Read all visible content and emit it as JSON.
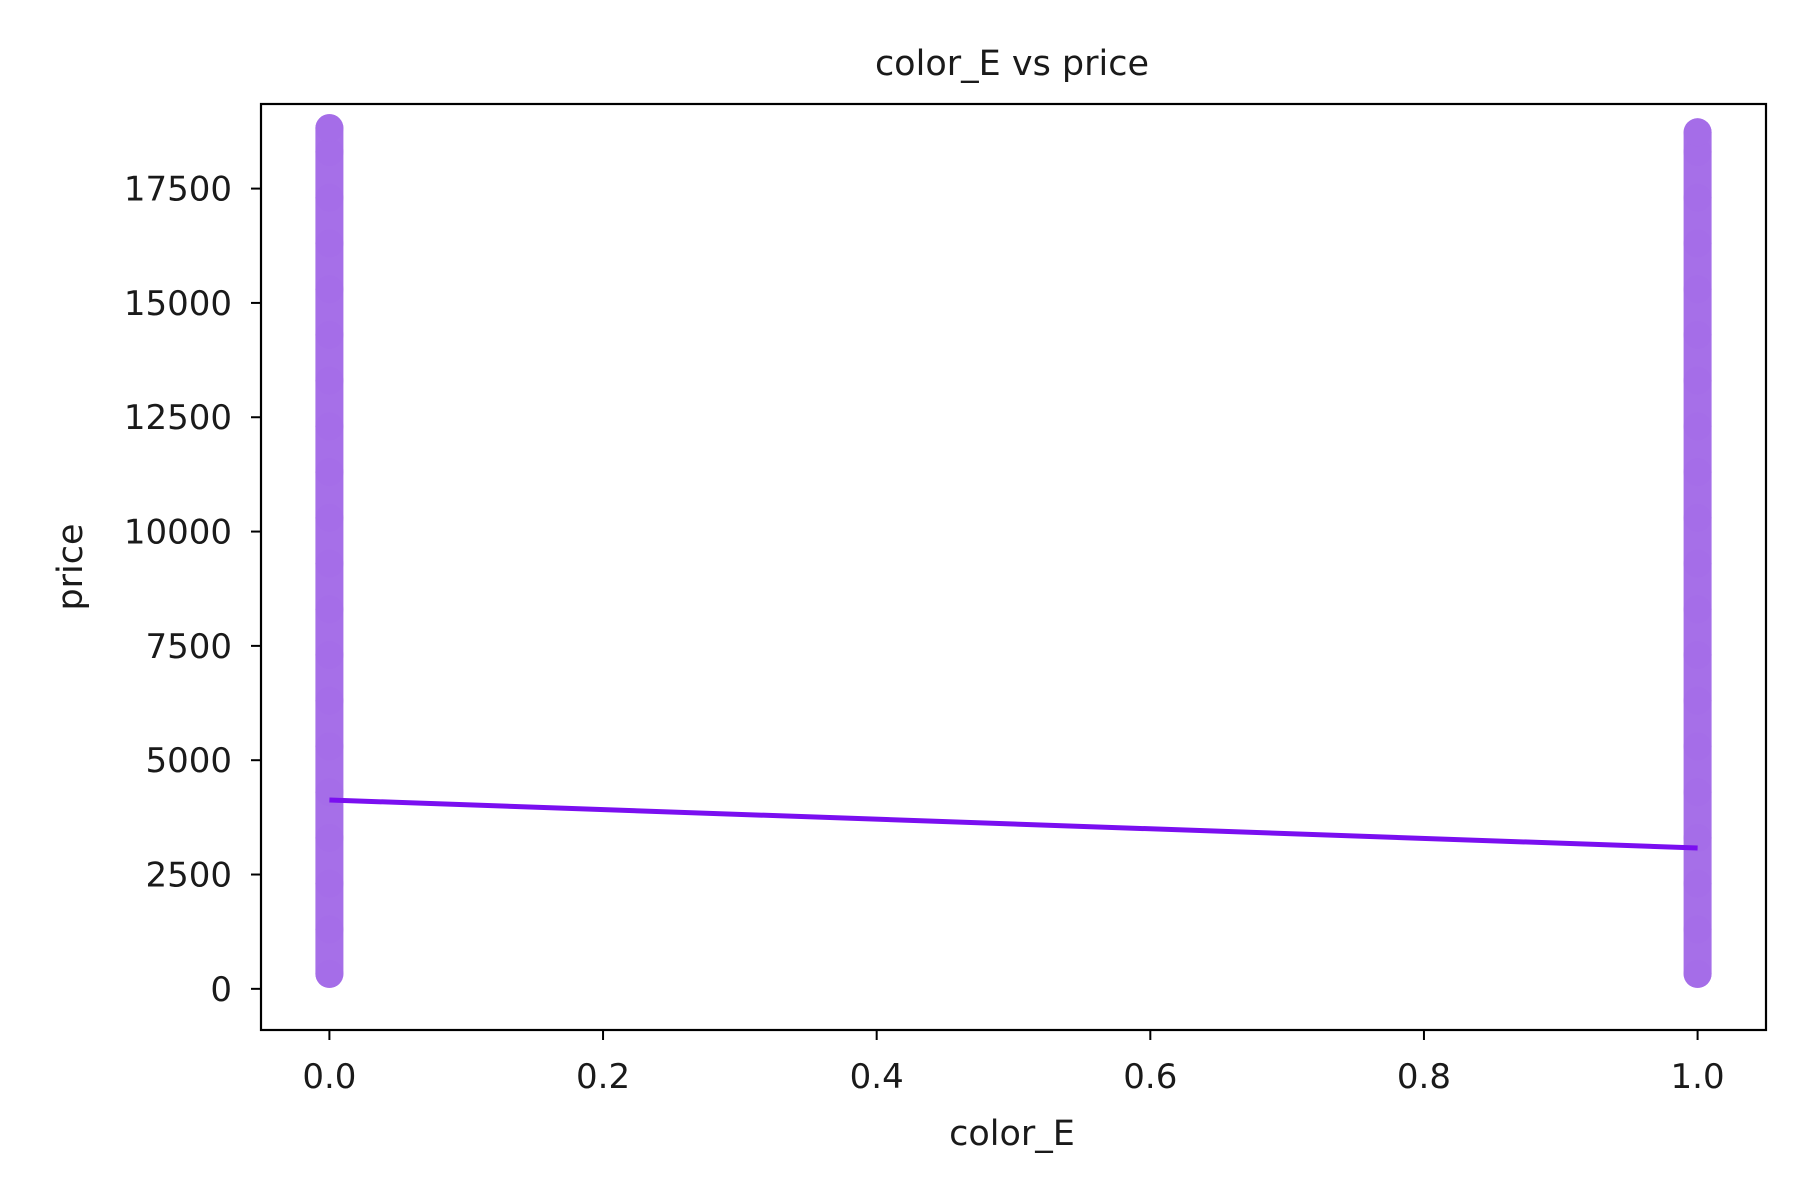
{
  "chart_data": {
    "type": "scatter",
    "title": "color_E vs price",
    "xlabel": "color_E",
    "ylabel": "price",
    "xlim": [
      -0.05,
      1.05
    ],
    "ylim": [
      -900,
      19350
    ],
    "x_ticks": [
      0.0,
      0.2,
      0.4,
      0.6,
      0.8,
      1.0
    ],
    "x_tick_labels": [
      "0.0",
      "0.2",
      "0.4",
      "0.6",
      "0.8",
      "1.0"
    ],
    "y_ticks": [
      0,
      2500,
      5000,
      7500,
      10000,
      12500,
      15000,
      17500
    ],
    "y_tick_labels": [
      "0",
      "2500",
      "5000",
      "7500",
      "10000",
      "12500",
      "15000",
      "17500"
    ],
    "grid": false,
    "point_color": "#a56de8",
    "line_color": "#7a0ff0",
    "series": [
      {
        "x": [
          0.0,
          0.0,
          0.0,
          0.0,
          0.0,
          0.0,
          0.0,
          0.0,
          0.0,
          0.0,
          0.0,
          0.0,
          0.0,
          0.0,
          0.0,
          0.0,
          0.0,
          0.0,
          0.0,
          0.0,
          1.0,
          1.0,
          1.0,
          1.0,
          1.0,
          1.0,
          1.0,
          1.0,
          1.0,
          1.0,
          1.0,
          1.0,
          1.0,
          1.0,
          1.0,
          1.0,
          1.0,
          1.0,
          1.0,
          1.0
        ],
        "y": [
          326,
          1300,
          2300,
          3300,
          4300,
          5300,
          6300,
          7300,
          8300,
          9300,
          10300,
          11300,
          12300,
          13300,
          14300,
          15300,
          16300,
          17300,
          18300,
          18823,
          326,
          1300,
          2300,
          3300,
          4300,
          5300,
          6300,
          7300,
          8300,
          9300,
          10300,
          11300,
          12300,
          13300,
          14300,
          15300,
          16300,
          17300,
          18300,
          18731
        ]
      }
    ],
    "regression_line": {
      "x": [
        0.0,
        1.0
      ],
      "y": [
        4130,
        3080
      ]
    }
  }
}
